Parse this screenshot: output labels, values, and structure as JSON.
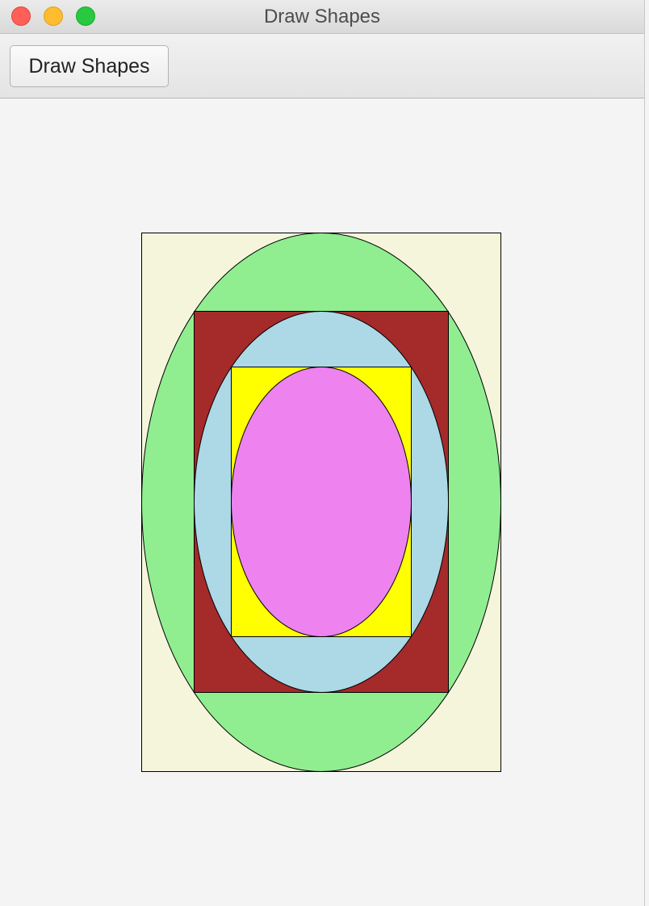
{
  "window": {
    "title": "Draw Shapes"
  },
  "toolbar": {
    "draw_button_label": "Draw Shapes"
  },
  "colors": {
    "window_controls": {
      "close": "#fe5f57",
      "minimize": "#febc2e",
      "zoom": "#28c840"
    },
    "shapes": {
      "outer_rectangle": "#f5f5dc",
      "outer_ellipse": "#90ee90",
      "middle_rectangle": "#a52a2a",
      "middle_ellipse": "#add8e6",
      "inner_rectangle": "#ffff00",
      "inner_ellipse": "#ee82ee",
      "outline": "#000000"
    }
  }
}
